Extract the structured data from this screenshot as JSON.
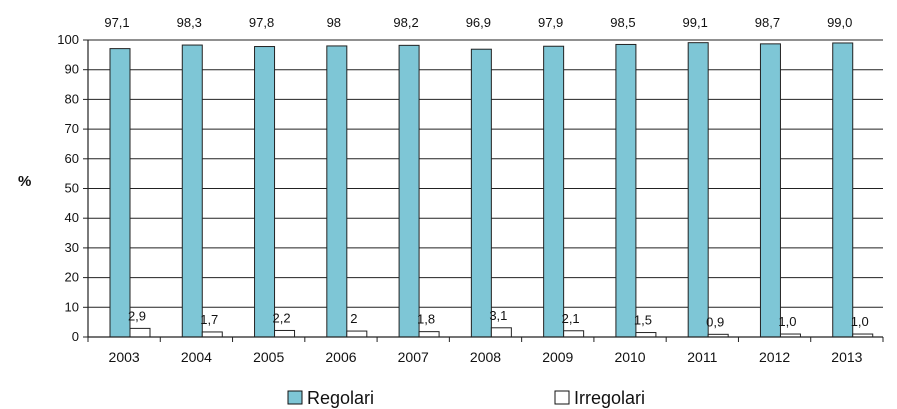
{
  "chart_data": {
    "type": "bar",
    "title": "",
    "xlabel": "",
    "ylabel": "%",
    "ylim": [
      0,
      100
    ],
    "yticks": [
      0,
      10,
      20,
      30,
      40,
      50,
      60,
      70,
      80,
      90,
      100
    ],
    "grid": true,
    "legend_position": "bottom",
    "categories": [
      "2003",
      "2004",
      "2005",
      "2006",
      "2007",
      "2008",
      "2009",
      "2010",
      "2011",
      "2012",
      "2013"
    ],
    "series": [
      {
        "name": "Regolari",
        "color": "#7ec6d6",
        "values": [
          97.1,
          98.3,
          97.8,
          98,
          98.2,
          96.9,
          97.9,
          98.5,
          99.1,
          98.7,
          99.0
        ],
        "labels": [
          "97,1",
          "98,3",
          "97,8",
          "98",
          "98,2",
          "96,9",
          "97,9",
          "98,5",
          "99,1",
          "98,7",
          "99,0"
        ]
      },
      {
        "name": "Irregolari",
        "color": "#ffffff",
        "values": [
          2.9,
          1.7,
          2.2,
          2,
          1.8,
          3.1,
          2.1,
          1.5,
          0.9,
          1.0,
          1.0
        ],
        "labels": [
          "2,9",
          "1,7",
          "2,2",
          "2",
          "1,8",
          "3,1",
          "2,1",
          "1,5",
          "0,9",
          "1,0",
          "1,0"
        ]
      }
    ]
  }
}
